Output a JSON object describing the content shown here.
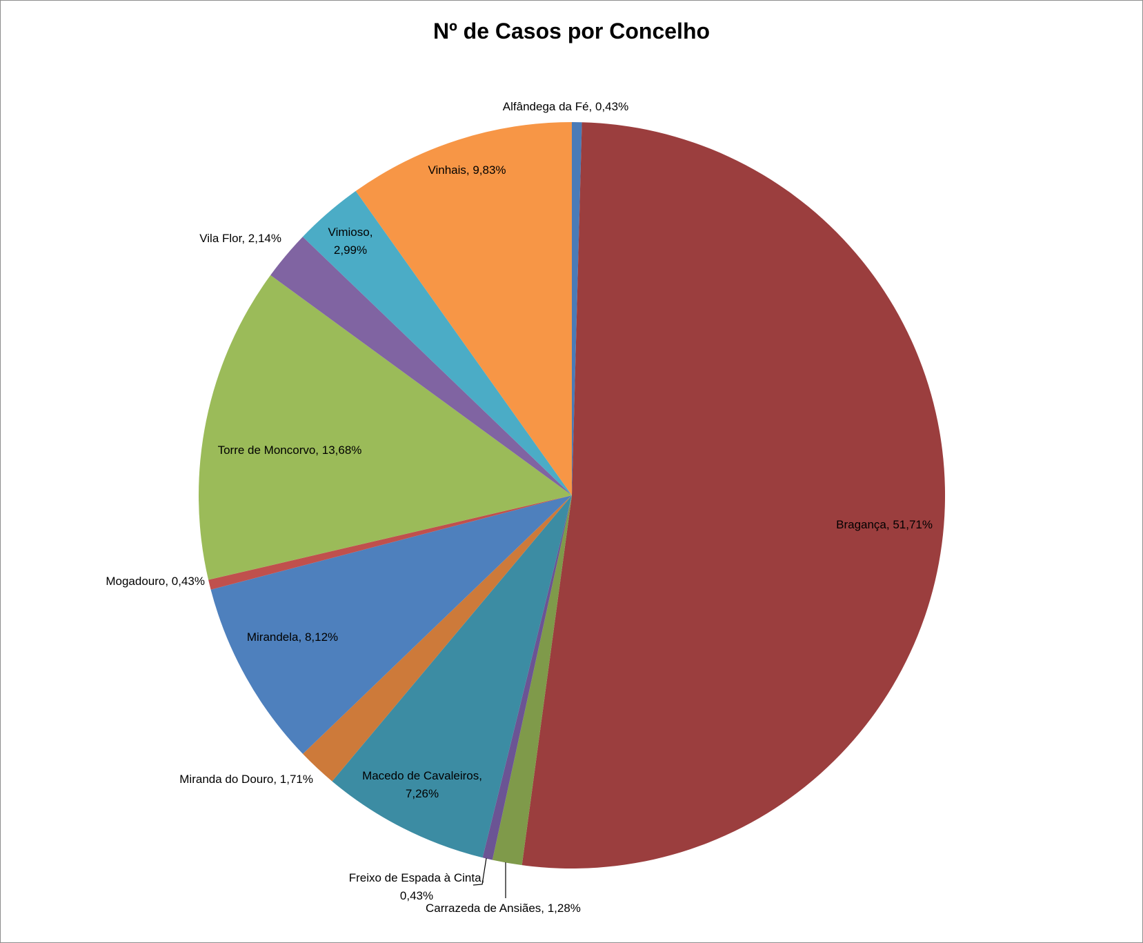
{
  "chart_data": {
    "type": "pie",
    "title": "Nº de Casos por Concelho",
    "start_angle_deg": 0,
    "direction": "clockwise",
    "slices": [
      {
        "name": "Alfândega da Fé",
        "value": 0.43,
        "label": "Alfândega da Fé, 0,43%",
        "color": "#4a7bb7"
      },
      {
        "name": "Bragança",
        "value": 51.71,
        "label": "Bragança, 51,71%",
        "color": "#9b3e3e"
      },
      {
        "name": "Carrazeda de Ansiães",
        "value": 1.28,
        "label": "Carrazeda de Ansiães, 1,28%",
        "color": "#7f9a4a"
      },
      {
        "name": "Freixo de Espada à Cinta",
        "value": 0.43,
        "label": [
          "Freixo de Espada à Cinta,",
          "0,43%"
        ],
        "color": "#6b5494"
      },
      {
        "name": "Macedo de Cavaleiros",
        "value": 7.26,
        "label": [
          "Macedo de Cavaleiros,",
          "7,26%"
        ],
        "color": "#3c8ca3"
      },
      {
        "name": "Miranda do Douro",
        "value": 1.71,
        "label": "Miranda do Douro, 1,71%",
        "color": "#cd7a3a"
      },
      {
        "name": "Mirandela",
        "value": 8.12,
        "label": "Mirandela, 8,12%",
        "color": "#4e80bd"
      },
      {
        "name": "Mogadouro",
        "value": 0.43,
        "label": "Mogadouro, 0,43%",
        "color": "#c0504d"
      },
      {
        "name": "Torre de Moncorvo",
        "value": 13.68,
        "label": "Torre de Moncorvo, 13,68%",
        "color": "#9bbb59"
      },
      {
        "name": "Vila Flor",
        "value": 2.14,
        "label": "Vila Flor, 2,14%",
        "color": "#8064a2"
      },
      {
        "name": "Vimioso",
        "value": 2.99,
        "label": [
          "Vimioso,",
          "2,99%"
        ],
        "color": "#4bacc6"
      },
      {
        "name": "Vinhais",
        "value": 9.83,
        "label": "Vinhais, 9,83%",
        "color": "#f79646"
      }
    ]
  }
}
